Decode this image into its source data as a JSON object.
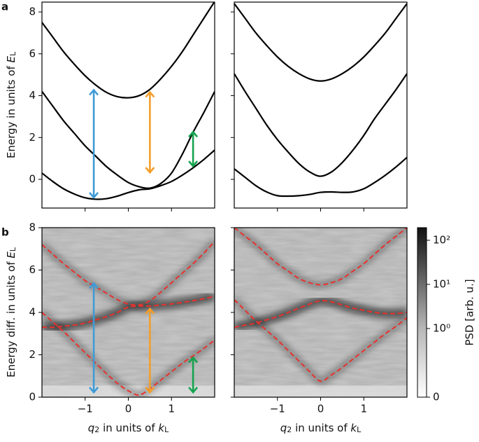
{
  "chart_data": [
    {
      "type": "line",
      "panel_label": "a",
      "xlim": [
        -2,
        2
      ],
      "ylim": [
        -1.37,
        8.47
      ],
      "xticks": [
        {
          "value": -1,
          "label": "−1"
        },
        0,
        1
      ],
      "yticks": [
        0,
        2,
        4,
        6,
        8
      ],
      "show_xticklabels": false,
      "show_yticklabels": true,
      "ylabel": [
        "Energy in units of ",
        "E",
        "L"
      ],
      "ylabel_styles": [
        "normal",
        "italic",
        "sub"
      ],
      "x": [
        -2,
        -1.75,
        -1.5,
        -1.25,
        -1,
        -0.75,
        -0.5,
        -0.25,
        0,
        0.25,
        0.5,
        0.75,
        1,
        1.25,
        1.5,
        1.75,
        2
      ],
      "series": [
        {
          "color": "#000000",
          "style": "solid",
          "values": [
            0.3,
            -0.1,
            -0.45,
            -0.7,
            -0.88,
            -0.95,
            -0.92,
            -0.8,
            -0.63,
            -0.5,
            -0.45,
            -0.3,
            -0.1,
            0.2,
            0.55,
            0.95,
            1.4
          ]
        },
        {
          "color": "#000000",
          "style": "solid",
          "values": [
            4.2,
            3.5,
            2.8,
            2.2,
            1.6,
            1.1,
            0.6,
            0.2,
            -0.15,
            -0.35,
            -0.42,
            -0.2,
            0.3,
            1.2,
            2.25,
            3.2,
            4.2
          ]
        },
        {
          "color": "#000000",
          "style": "solid",
          "values": [
            7.5,
            6.8,
            6.1,
            5.5,
            4.95,
            4.5,
            4.15,
            3.95,
            3.9,
            4.0,
            4.3,
            4.8,
            5.4,
            6.1,
            6.9,
            7.7,
            8.5
          ]
        }
      ],
      "arrows": [
        {
          "x": -0.8,
          "y": [
            -0.9,
            4.3
          ],
          "color": "#3e9bd6"
        },
        {
          "x": 0.5,
          "y": [
            0.3,
            4.2
          ],
          "color": "#f59e2a"
        },
        {
          "x": 1.5,
          "y": [
            0.6,
            2.3
          ],
          "color": "#16a34f"
        }
      ]
    },
    {
      "type": "line",
      "xlim": [
        -2,
        2
      ],
      "ylim": [
        -1.37,
        8.47
      ],
      "xticks": [
        {
          "value": -1,
          "label": "−1"
        },
        0,
        1
      ],
      "yticks": [
        0,
        2,
        4,
        6,
        8
      ],
      "show_xticklabels": false,
      "show_yticklabels": false,
      "x": [
        -2,
        -1.75,
        -1.5,
        -1.25,
        -1,
        -0.75,
        -0.5,
        -0.25,
        0,
        0.25,
        0.5,
        0.75,
        1,
        1.25,
        1.5,
        1.75,
        2
      ],
      "series": [
        {
          "color": "#000000",
          "style": "solid",
          "values": [
            0.5,
            0.1,
            -0.3,
            -0.6,
            -0.78,
            -0.8,
            -0.78,
            -0.72,
            -0.62,
            -0.6,
            -0.62,
            -0.6,
            -0.45,
            -0.15,
            0.2,
            0.6,
            1.05
          ]
        },
        {
          "color": "#000000",
          "style": "solid",
          "values": [
            5.05,
            4.2,
            3.4,
            2.6,
            1.9,
            1.3,
            0.75,
            0.35,
            0.15,
            0.35,
            0.8,
            1.4,
            2.1,
            2.9,
            3.6,
            4.3,
            5.05
          ]
        },
        {
          "color": "#000000",
          "style": "solid",
          "values": [
            8.4,
            7.7,
            7.0,
            6.4,
            5.85,
            5.4,
            5.05,
            4.8,
            4.7,
            4.8,
            5.05,
            5.4,
            5.85,
            6.4,
            7.0,
            7.7,
            8.4
          ]
        }
      ]
    },
    {
      "type": "heatmap",
      "panel_label": "b",
      "xlim": [
        -2,
        2
      ],
      "ylim": [
        0,
        8
      ],
      "xticks": [
        {
          "value": -1,
          "label": "−1"
        },
        0,
        1
      ],
      "yticks": [
        0,
        2,
        4,
        6,
        8
      ],
      "show_xticklabels": true,
      "show_yticklabels": true,
      "ylabel": [
        "Energy diff. in units of ",
        "E",
        "L"
      ],
      "ylabel_styles": [
        "normal",
        "italic",
        "sub"
      ],
      "xlabel": [
        "q",
        "2",
        " in units of ",
        "k",
        "L"
      ],
      "xlabel_styles": [
        "italic",
        "sub",
        "normal",
        "italic",
        "sub"
      ],
      "x": [
        -2,
        -1.75,
        -1.5,
        -1.25,
        -1,
        -0.75,
        -0.5,
        -0.25,
        0,
        0.25,
        0.5,
        0.75,
        1,
        1.25,
        1.5,
        1.75,
        2
      ],
      "series": [
        {
          "color": "#e8322e",
          "style": "dashed",
          "values": [
            7.2,
            6.75,
            6.3,
            5.9,
            5.5,
            5.2,
            4.9,
            4.6,
            4.4,
            4.35,
            4.55,
            4.95,
            5.4,
            5.85,
            6.3,
            6.8,
            7.35
          ]
        },
        {
          "color": "#e8322e",
          "style": "dashed",
          "values": [
            3.3,
            3.3,
            3.35,
            3.4,
            3.5,
            3.65,
            3.8,
            4.0,
            4.25,
            4.3,
            4.3,
            4.35,
            4.4,
            4.47,
            4.55,
            4.65,
            4.75
          ]
        },
        {
          "color": "#e8322e",
          "style": "dashed",
          "values": [
            4.0,
            3.55,
            3.1,
            2.6,
            2.1,
            1.6,
            1.1,
            0.65,
            0.3,
            0.1,
            0.4,
            0.8,
            1.2,
            1.6,
            1.95,
            2.3,
            2.7
          ]
        }
      ],
      "arrows": [
        {
          "x": -0.8,
          "y": [
            0.2,
            5.4
          ],
          "color": "#3e9bd6"
        },
        {
          "x": 0.5,
          "y": [
            0.2,
            4.2
          ],
          "color": "#f59e2a"
        },
        {
          "x": 1.5,
          "y": [
            0.2,
            1.9
          ],
          "color": "#16a34f"
        }
      ]
    },
    {
      "type": "heatmap",
      "xlim": [
        -2,
        2
      ],
      "ylim": [
        0,
        8
      ],
      "xticks": [
        {
          "value": -1,
          "label": "−1"
        },
        0,
        1
      ],
      "yticks": [
        0,
        2,
        4,
        6,
        8
      ],
      "show_xticklabels": true,
      "show_yticklabels": false,
      "xlabel": [
        "q",
        "2",
        " in units of ",
        "k",
        "L"
      ],
      "xlabel_styles": [
        "italic",
        "sub",
        "normal",
        "italic",
        "sub"
      ],
      "x": [
        -2,
        -1.75,
        -1.5,
        -1.25,
        -1,
        -0.75,
        -0.5,
        -0.25,
        0,
        0.25,
        0.5,
        0.75,
        1,
        1.25,
        1.5,
        1.75,
        2
      ],
      "series": [
        {
          "color": "#e8322e",
          "style": "dashed",
          "values": [
            8.0,
            7.6,
            7.2,
            6.75,
            6.3,
            5.95,
            5.6,
            5.4,
            5.3,
            5.4,
            5.6,
            5.95,
            6.3,
            6.75,
            7.2,
            7.6,
            8.0
          ]
        },
        {
          "color": "#e8322e",
          "style": "dashed",
          "values": [
            3.3,
            3.4,
            3.5,
            3.65,
            3.8,
            4.0,
            4.2,
            4.4,
            4.55,
            4.5,
            4.35,
            4.2,
            4.1,
            4.0,
            3.95,
            3.95,
            4.0
          ]
        },
        {
          "color": "#e8322e",
          "style": "dashed",
          "values": [
            4.6,
            4.1,
            3.6,
            3.15,
            2.7,
            2.2,
            1.7,
            1.2,
            0.75,
            1.05,
            1.4,
            1.8,
            2.2,
            2.6,
            3.0,
            3.35,
            3.75
          ]
        }
      ]
    },
    {
      "type": "colorbar",
      "scale": "symlog",
      "linthresh": 1,
      "label": "PSD [arb. u.]",
      "ticks": [
        {
          "value": 100,
          "label": "10²"
        },
        {
          "value": 10,
          "label": "10¹"
        },
        {
          "value": 1,
          "label": "10⁰"
        },
        0
      ]
    }
  ]
}
